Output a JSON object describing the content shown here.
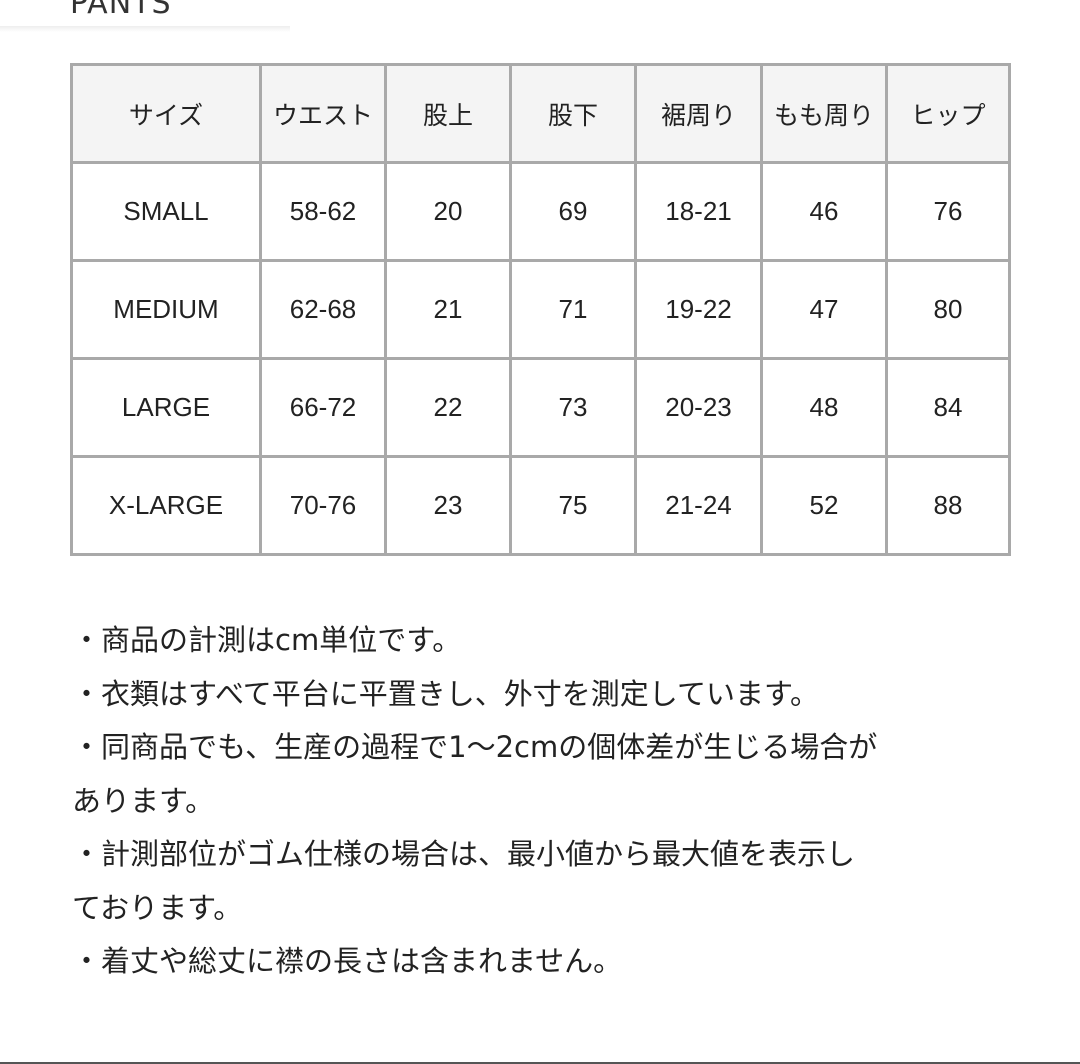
{
  "heading": "PANTS",
  "table": {
    "headers": [
      "サイズ",
      "ウエスト",
      "股上",
      "股下",
      "裾周り",
      "もも周り",
      "ヒップ"
    ],
    "rows": [
      [
        "SMALL",
        "58-62",
        "20",
        "69",
        "18-21",
        "46",
        "76"
      ],
      [
        "MEDIUM",
        "62-68",
        "21",
        "71",
        "19-22",
        "47",
        "80"
      ],
      [
        "LARGE",
        "66-72",
        "22",
        "73",
        "20-23",
        "48",
        "84"
      ],
      [
        "X-LARGE",
        "70-76",
        "23",
        "75",
        "21-24",
        "52",
        "88"
      ]
    ]
  },
  "notes": [
    "・商品の計測はcm単位です。",
    "・衣類はすべて平台に平置きし、外寸を測定しています。",
    "・同商品でも、生産の過程で1〜2cmの個体差が生じる場合が",
    "あります。",
    "・計測部位がゴム仕様の場合は、最小値から最大値を表示し",
    "ております。",
    "・着丈や総丈に襟の長さは含まれません。"
  ]
}
